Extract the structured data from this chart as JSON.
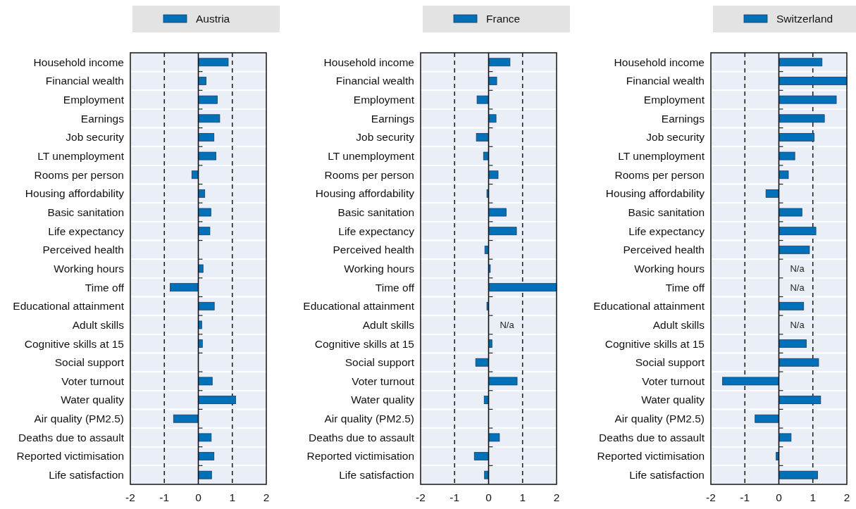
{
  "chart_data": [
    {
      "type": "bar",
      "orientation": "horizontal",
      "categories": [
        "Household income",
        "Financial wealth",
        "Employment",
        "Earnings",
        "Job security",
        "LT unemployment",
        "Rooms per person",
        "Housing affordability",
        "Basic sanitation",
        "Life expectancy",
        "Perceived health",
        "Working hours",
        "Time off",
        "Educational attainment",
        "Adult skills",
        "Cognitive skills at 15",
        "Social support",
        "Voter turnout",
        "Water quality",
        "Air quality (PM2.5)",
        "Deaths due to assault",
        "Reported victimisation",
        "Life satisfaction"
      ],
      "series": [
        {
          "name": "Austria",
          "color": "#0070b8",
          "values": [
            0.88,
            0.23,
            0.56,
            0.63,
            0.46,
            0.52,
            -0.19,
            0.19,
            0.37,
            0.34,
            0,
            0.14,
            -0.83,
            0.47,
            0.1,
            0.12,
            0,
            0.41,
            1.1,
            -0.73,
            0.38,
            0.46,
            0.39
          ]
        }
      ],
      "xlim": [
        -2,
        2
      ],
      "xticks": [
        -2,
        -1,
        0,
        1,
        2
      ],
      "grid": "y",
      "legend": "top",
      "ref_lines": [
        {
          "axis": "x",
          "value": -1,
          "line_style": "dashed"
        },
        {
          "axis": "x",
          "value": 1,
          "line_style": "dashed"
        }
      ]
    },
    {
      "type": "bar",
      "orientation": "horizontal",
      "categories": [
        "Household income",
        "Financial wealth",
        "Employment",
        "Earnings",
        "Job security",
        "LT unemployment",
        "Rooms per person",
        "Housing affordability",
        "Basic sanitation",
        "Life expectancy",
        "Perceived health",
        "Working hours",
        "Time off",
        "Educational attainment",
        "Adult skills",
        "Cognitive skills at 15",
        "Social support",
        "Voter turnout",
        "Water quality",
        "Air quality (PM2.5)",
        "Deaths due to assault",
        "Reported victimisation",
        "Life satisfaction"
      ],
      "series": [
        {
          "name": "France",
          "color": "#0070b8",
          "values": [
            0.63,
            0.24,
            -0.34,
            0.22,
            -0.36,
            -0.15,
            0.28,
            -0.05,
            0.52,
            0.82,
            -0.11,
            0.05,
            2,
            -0.05,
            null,
            0.1,
            -0.38,
            0.84,
            -0.13,
            0,
            0.32,
            -0.42,
            -0.12
          ]
        }
      ],
      "xlim": [
        -2,
        2
      ],
      "xticks": [
        -2,
        -1,
        0,
        1,
        2
      ],
      "grid": "y",
      "legend": "top",
      "ref_lines": [
        {
          "axis": "x",
          "value": -1,
          "line_style": "dashed"
        },
        {
          "axis": "x",
          "value": 1,
          "line_style": "dashed"
        }
      ],
      "annotations": [
        "N/a"
      ]
    },
    {
      "type": "bar",
      "orientation": "horizontal",
      "categories": [
        "Household income",
        "Financial wealth",
        "Employment",
        "Earnings",
        "Job security",
        "LT unemployment",
        "Rooms per person",
        "Housing affordability",
        "Basic sanitation",
        "Life expectancy",
        "Perceived health",
        "Working hours",
        "Time off",
        "Educational attainment",
        "Adult skills",
        "Cognitive skills at 15",
        "Social support",
        "Voter turnout",
        "Water quality",
        "Air quality (PM2.5)",
        "Deaths due to assault",
        "Reported victimisation",
        "Life satisfaction"
      ],
      "series": [
        {
          "name": "Switzerland",
          "color": "#0070b8",
          "values": [
            1.27,
            2,
            1.69,
            1.34,
            1.04,
            0.47,
            0.28,
            -0.38,
            0.68,
            1.09,
            0.9,
            null,
            null,
            0.73,
            null,
            0.81,
            1.17,
            -1.66,
            1.23,
            -0.7,
            0.36,
            -0.08,
            1.14
          ]
        }
      ],
      "xlim": [
        -2,
        2
      ],
      "xticks": [
        -2,
        -1,
        0,
        1,
        2
      ],
      "grid": "y",
      "legend": "top",
      "ref_lines": [
        {
          "axis": "x",
          "value": -1,
          "line_style": "dashed"
        },
        {
          "axis": "x",
          "value": 1,
          "line_style": "dashed"
        }
      ],
      "annotations": [
        "N/a",
        "N/a",
        "N/a"
      ]
    }
  ]
}
